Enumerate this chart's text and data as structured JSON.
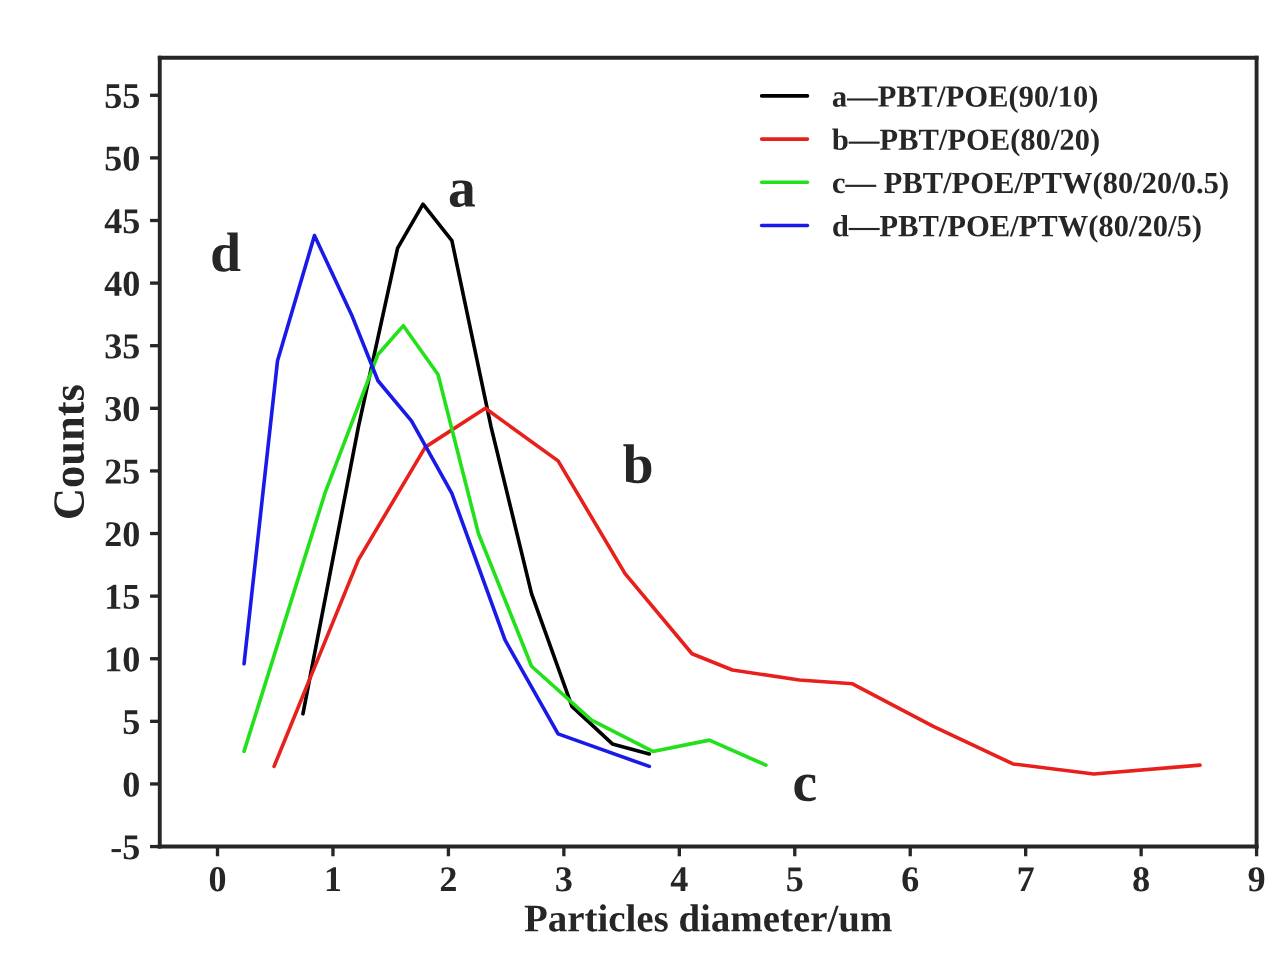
{
  "chart_data": {
    "type": "line",
    "xlabel": "Particles diameter/um",
    "ylabel": "Counts",
    "xlim": [
      -0.5,
      9
    ],
    "ylim": [
      -5,
      58
    ],
    "xticks": [
      0,
      1,
      2,
      3,
      4,
      5,
      6,
      7,
      8,
      9
    ],
    "yticks": [
      -5,
      0,
      5,
      10,
      15,
      20,
      25,
      30,
      35,
      40,
      45,
      50,
      55
    ],
    "grid": false,
    "legend": "top right",
    "marker": "none",
    "line_style": "solid",
    "series": [
      {
        "name": "a—PBT/POE(90/10)",
        "color": "#000000",
        "x": [
          0.74,
          1.22,
          1.56,
          1.78,
          2.03,
          2.37,
          2.72,
          3.07,
          3.42,
          3.74
        ],
        "values": [
          5.6,
          28.5,
          42.8,
          46.3,
          43.4,
          28.5,
          15.2,
          6.2,
          3.2,
          2.4
        ]
      },
      {
        "name": "b—PBT/POE(80/20)",
        "color": "#e8201c",
        "x": [
          0.49,
          1.22,
          1.8,
          2.32,
          2.95,
          3.53,
          4.11,
          4.46,
          5.04,
          5.5,
          6.2,
          6.89,
          7.59,
          8.51
        ],
        "values": [
          1.4,
          17.9,
          26.9,
          30.0,
          25.8,
          16.8,
          10.4,
          9.1,
          8.3,
          8.0,
          4.6,
          1.6,
          0.8,
          1.5
        ]
      },
      {
        "name": "c— PBT/POE/PTW(80/20/0.5)",
        "color": "#22e01a",
        "x": [
          0.23,
          0.93,
          1.39,
          1.61,
          1.91,
          2.26,
          2.72,
          3.24,
          3.77,
          4.26,
          4.75
        ],
        "values": [
          2.6,
          23.2,
          34.3,
          36.6,
          32.7,
          20.0,
          9.4,
          5.1,
          2.6,
          3.5,
          1.5
        ]
      },
      {
        "name": "d—PBT/POE/PTW(80/20/5)",
        "color": "#1a1ae8",
        "x": [
          0.23,
          0.52,
          0.84,
          1.16,
          1.39,
          1.68,
          2.03,
          2.49,
          2.95,
          3.74
        ],
        "values": [
          9.6,
          33.8,
          43.8,
          37.5,
          32.2,
          29.0,
          23.2,
          11.5,
          4.0,
          1.4
        ]
      }
    ],
    "annotations": [
      "a",
      "b",
      "c",
      "d"
    ]
  }
}
